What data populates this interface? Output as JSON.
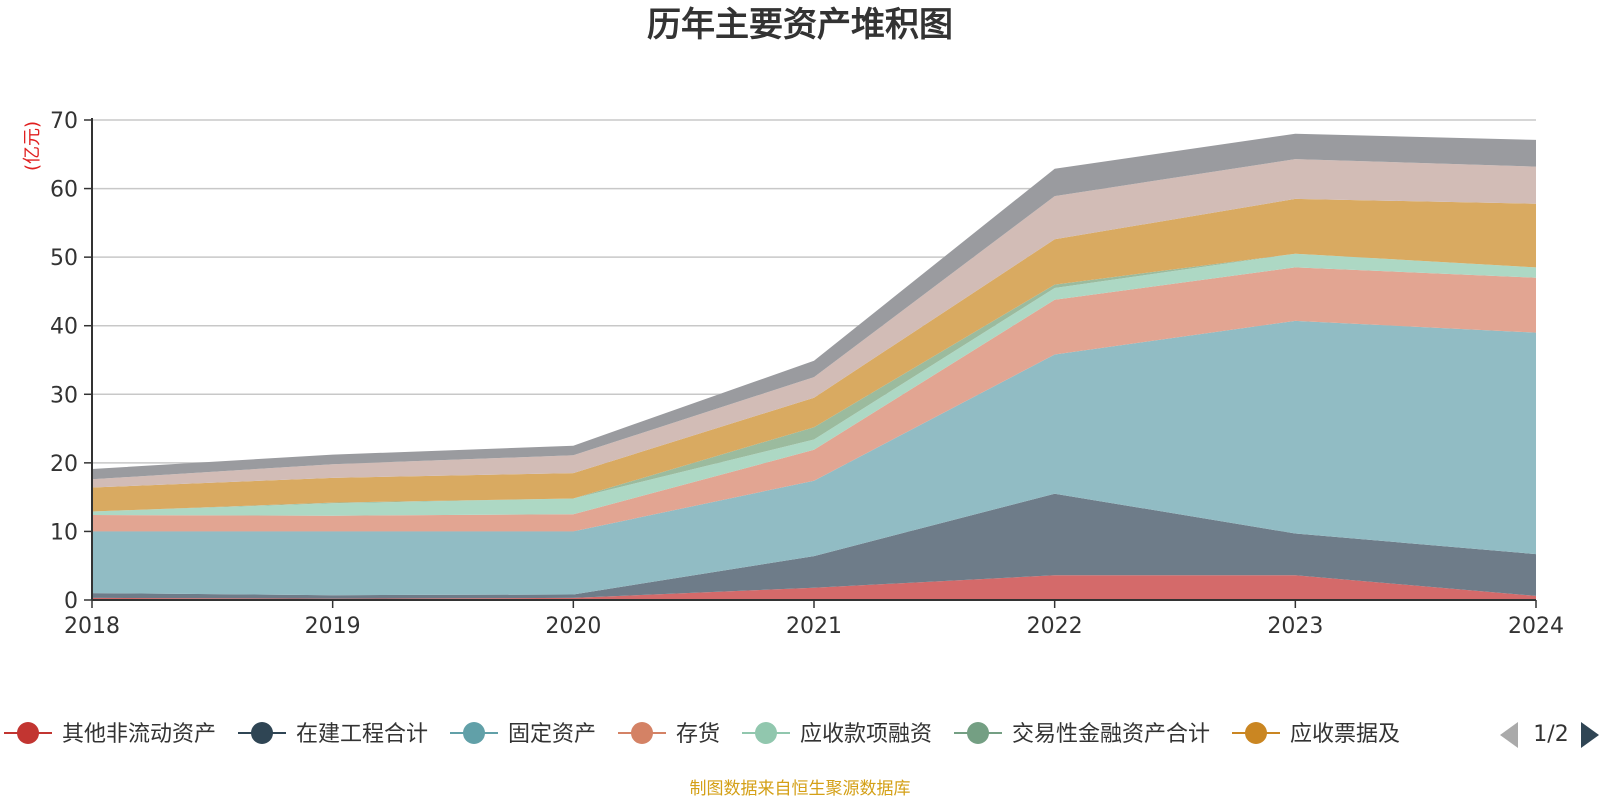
{
  "chart_data": {
    "type": "area",
    "title": "历年主要资产堆积图",
    "unit_label": "(亿元)",
    "x": [
      "2018",
      "2019",
      "2020",
      "2021",
      "2022",
      "2023",
      "2024"
    ],
    "ylim": [
      0,
      70
    ],
    "yticks": [
      0,
      10,
      20,
      30,
      40,
      50,
      60,
      70
    ],
    "grid": true,
    "stacked": true,
    "series": [
      {
        "name": "其他非流动资产",
        "color": "#c23531",
        "fill": "#d46a6a",
        "values": [
          0.3,
          0.2,
          0.3,
          1.8,
          3.6,
          3.6,
          0.6
        ]
      },
      {
        "name": "在建工程合计",
        "color": "#2f4554",
        "fill": "#6e7c89",
        "values": [
          0.7,
          0.5,
          0.5,
          4.6,
          11.9,
          6.1,
          6.1
        ]
      },
      {
        "name": "固定资产",
        "color": "#61a0a8",
        "fill": "#91bcc4",
        "values": [
          9.0,
          9.3,
          9.2,
          11.0,
          20.3,
          31.0,
          32.3
        ]
      },
      {
        "name": "存货",
        "color": "#d48265",
        "fill": "#e2a592",
        "values": [
          2.4,
          2.3,
          2.5,
          4.5,
          8.0,
          7.8,
          8.0
        ]
      },
      {
        "name": "应收款项融资",
        "color": "#91c7ae",
        "fill": "#add8c4",
        "values": [
          0.5,
          1.8,
          2.3,
          1.5,
          1.7,
          2.0,
          1.5
        ]
      },
      {
        "name": "交易性金融资产合计",
        "color": "#749f83",
        "fill": "#9bbb9e",
        "values": [
          0.0,
          0.1,
          0.0,
          1.8,
          0.5,
          0.0,
          0.0
        ]
      },
      {
        "name": "应收票据及",
        "color": "#ca8622",
        "fill": "#d9aa61",
        "values": [
          3.5,
          3.6,
          3.7,
          4.3,
          6.6,
          8.0,
          9.3
        ]
      },
      {
        "name": "",
        "color": "#bda29a",
        "fill": "#d2bcb6",
        "values": [
          1.2,
          2.0,
          2.6,
          3.0,
          6.3,
          5.8,
          5.4
        ]
      },
      {
        "name": "",
        "color": "#6e7074",
        "fill": "#9a9b9f",
        "values": [
          1.5,
          1.4,
          1.4,
          2.4,
          4.0,
          3.7,
          3.9
        ]
      }
    ],
    "legend": {
      "placement": "bottom",
      "page": "1/2"
    }
  },
  "source_note": "制图数据来自恒生聚源数据库"
}
